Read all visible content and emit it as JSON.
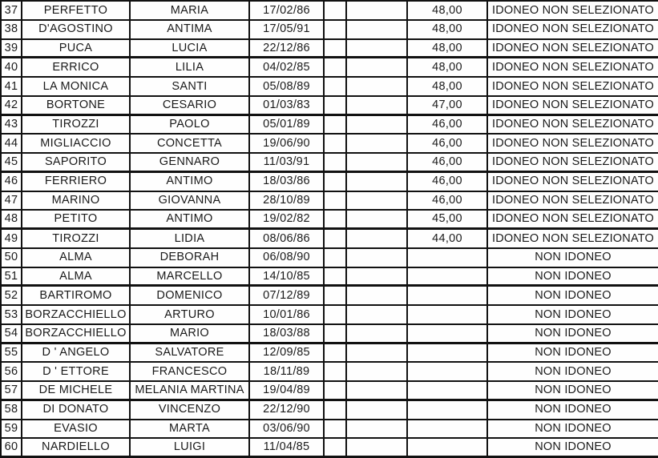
{
  "document": {
    "kind": "scanned ranking list table",
    "language": "it"
  },
  "colors": {
    "background": "#fefefe",
    "border": "#111111",
    "text": "#1a1a1a"
  },
  "status_labels": {
    "eligible_not_selected": "IDONEO NON SELEZIONATO",
    "not_eligible": "NON IDONEO"
  },
  "table": {
    "rows": [
      {
        "num": "37",
        "surname": "PERFETTO",
        "name": "MARIA",
        "date": "17/02/86",
        "score": "48,00",
        "status": "IDONEO NON SELEZIONATO"
      },
      {
        "num": "38",
        "surname": "D'AGOSTINO",
        "name": "ANTIMA",
        "date": "17/05/91",
        "score": "48,00",
        "status": "IDONEO NON SELEZIONATO"
      },
      {
        "num": "39",
        "surname": "PUCA",
        "name": "LUCIA",
        "date": "22/12/86",
        "score": "48,00",
        "status": "IDONEO NON SELEZIONATO"
      },
      {
        "num": "40",
        "surname": "ERRICO",
        "name": "LILIA",
        "date": "04/02/85",
        "score": "48,00",
        "status": "IDONEO NON SELEZIONATO"
      },
      {
        "num": "41",
        "surname": "LA MONICA",
        "name": "SANTI",
        "date": "05/08/89",
        "score": "48,00",
        "status": "IDONEO NON SELEZIONATO"
      },
      {
        "num": "42",
        "surname": "BORTONE",
        "name": "CESARIO",
        "date": "01/03/83",
        "score": "47,00",
        "status": "IDONEO NON SELEZIONATO"
      },
      {
        "num": "43",
        "surname": "TIROZZI",
        "name": "PAOLO",
        "date": "05/01/89",
        "score": "46,00",
        "status": "IDONEO NON SELEZIONATO"
      },
      {
        "num": "44",
        "surname": "MIGLIACCIO",
        "name": "CONCETTA",
        "date": "19/06/90",
        "score": "46,00",
        "status": "IDONEO NON SELEZIONATO"
      },
      {
        "num": "45",
        "surname": "SAPORITO",
        "name": "GENNARO",
        "date": "11/03/91",
        "score": "46,00",
        "status": "IDONEO NON SELEZIONATO"
      },
      {
        "num": "46",
        "surname": "FERRIERO",
        "name": "ANTIMO",
        "date": "18/03/86",
        "score": "46,00",
        "status": "IDONEO NON SELEZIONATO"
      },
      {
        "num": "47",
        "surname": "MARINO",
        "name": "GIOVANNA",
        "date": "28/10/89",
        "score": "46,00",
        "status": "IDONEO NON SELEZIONATO"
      },
      {
        "num": "48",
        "surname": "PETITO",
        "name": "ANTIMO",
        "date": "19/02/82",
        "score": "45,00",
        "status": "IDONEO NON SELEZIONATO"
      },
      {
        "num": "49",
        "surname": "TIROZZI",
        "name": "LIDIA",
        "date": "08/06/86",
        "score": "44,00",
        "status": "IDONEO NON SELEZIONATO"
      },
      {
        "num": "50",
        "surname": "ALMA",
        "name": "DEBORAH",
        "date": "06/08/90",
        "score": "",
        "status": "NON IDONEO"
      },
      {
        "num": "51",
        "surname": "ALMA",
        "name": "MARCELLO",
        "date": "14/10/85",
        "score": "",
        "status": "NON IDONEO"
      },
      {
        "num": "52",
        "surname": "BARTIROMO",
        "name": "DOMENICO",
        "date": "07/12/89",
        "score": "",
        "status": "NON IDONEO"
      },
      {
        "num": "53",
        "surname": "BORZACCHIELLO",
        "name": "ARTURO",
        "date": "10/01/86",
        "score": "",
        "status": "NON IDONEO"
      },
      {
        "num": "54",
        "surname": "BORZACCHIELLO",
        "name": "MARIO",
        "date": "18/03/88",
        "score": "",
        "status": "NON IDONEO"
      },
      {
        "num": "55",
        "surname": "D ' ANGELO",
        "name": "SALVATORE",
        "date": "12/09/85",
        "score": "",
        "status": "NON IDONEO"
      },
      {
        "num": "56",
        "surname": "D ' ETTORE",
        "name": "FRANCESCO",
        "date": "18/11/89",
        "score": "",
        "status": "NON IDONEO"
      },
      {
        "num": "57",
        "surname": "DE MICHELE",
        "name": "MELANIA MARTINA",
        "date": "19/04/89",
        "score": "",
        "status": "NON IDONEO"
      },
      {
        "num": "58",
        "surname": "DI DONATO",
        "name": "VINCENZO",
        "date": "22/12/90",
        "score": "",
        "status": "NON IDONEO"
      },
      {
        "num": "59",
        "surname": "EVASIO",
        "name": "MARTA",
        "date": "03/06/90",
        "score": "",
        "status": "NON IDONEO"
      },
      {
        "num": "60",
        "surname": "NARDIELLO",
        "name": "LUIGI",
        "date": "11/04/85",
        "score": "",
        "status": "NON IDONEO"
      }
    ]
  }
}
